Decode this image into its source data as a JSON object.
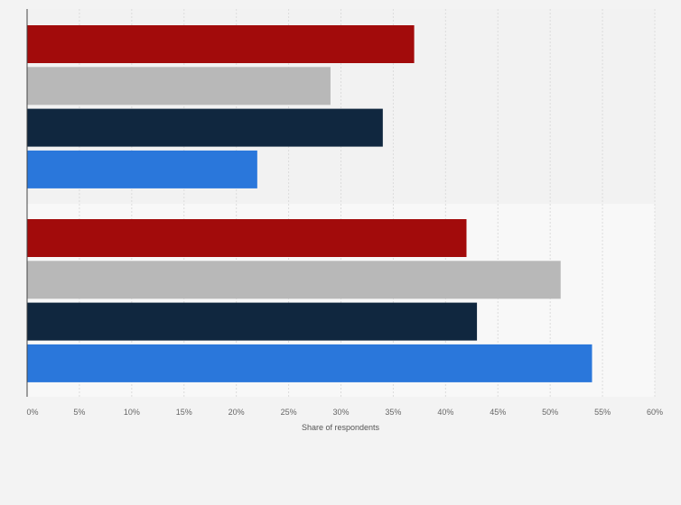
{
  "chart_data": {
    "type": "bar",
    "orientation": "horizontal",
    "categories": [
      "",
      ""
    ],
    "series": [
      {
        "color": "#a20b0b",
        "values": [
          37,
          42
        ]
      },
      {
        "color": "#b8b8b8",
        "values": [
          29,
          51
        ]
      },
      {
        "color": "#10273f",
        "values": [
          34,
          43
        ]
      },
      {
        "color": "#2a77db",
        "values": [
          22,
          54
        ]
      }
    ],
    "xlabel": "Share of respondents",
    "ylabel": "",
    "xlim": [
      0,
      60
    ],
    "xticks": [
      "0%",
      "5%",
      "10%",
      "15%",
      "20%",
      "25%",
      "30%",
      "35%",
      "40%",
      "45%",
      "50%",
      "55%",
      "60%"
    ],
    "grid": true,
    "legend": "none"
  }
}
